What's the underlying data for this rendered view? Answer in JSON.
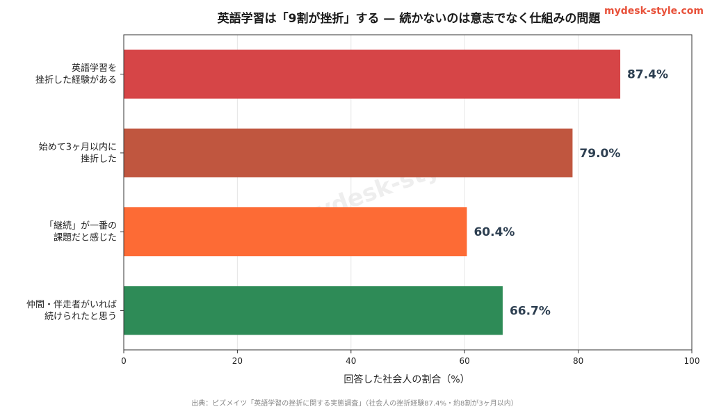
{
  "brand": "mydesk-style.com",
  "watermark": "mydesk-style.com",
  "source_note": "出典：ビズメイツ「英語学習の挫折に関する実態調査」（社会人の挫折経験87.4%・約8割が3ヶ月以内）",
  "chart_data": {
    "type": "bar",
    "orientation": "horizontal",
    "title": "英語学習は「9割が挫折」する — 続かないのは意志でなく仕組みの問題",
    "xlabel": "回答した社会人の割合（%）",
    "ylabel": "",
    "xlim": [
      0,
      100
    ],
    "xticks": [
      "0",
      "20",
      "40",
      "60",
      "80",
      "100"
    ],
    "grid": true,
    "categories": [
      [
        "英語学習を",
        "挫折した経験がある"
      ],
      [
        "始めて3ヶ月以内に",
        "挫折した"
      ],
      [
        "「継続」が一番の",
        "課題だと感じた"
      ],
      [
        "仲間・伴走者がいれば",
        "続けられたと思う"
      ]
    ],
    "values": [
      87.4,
      79.0,
      60.4,
      66.7
    ],
    "data_labels": [
      "87.4%",
      "79.0%",
      "60.4%",
      "66.7%"
    ],
    "colors": [
      "#d64547",
      "#c0563f",
      "#fd6b35",
      "#2e8b57"
    ]
  }
}
